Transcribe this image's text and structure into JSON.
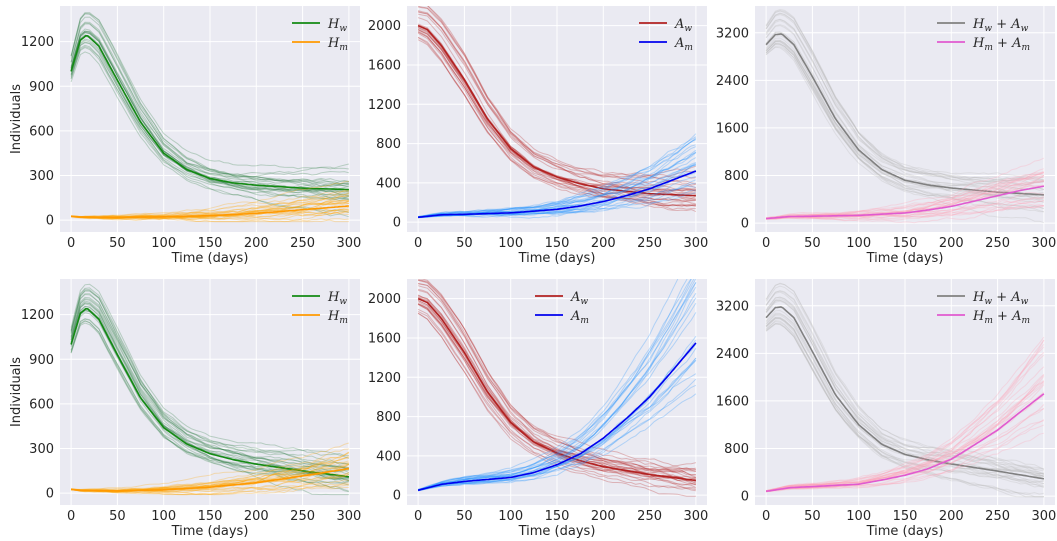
{
  "chart_data": [
    {
      "type": "line",
      "row": 0,
      "col": 0,
      "ylabel": "Individuals",
      "xlabel": "Time (days)",
      "xlim": [
        -12,
        312
      ],
      "ylim": [
        -80,
        1440
      ],
      "xticks": [
        0,
        50,
        100,
        150,
        200,
        250,
        300
      ],
      "yticks": [
        0,
        300,
        600,
        900,
        1200
      ],
      "grid": true,
      "legend": "top-right",
      "series": [
        {
          "name": "Hw",
          "sym": "H",
          "sub": "w",
          "color": "#138a13",
          "band": "#2e7d46",
          "x": [
            0,
            10,
            17,
            30,
            50,
            75,
            100,
            125,
            150,
            175,
            200,
            250,
            300
          ],
          "y": [
            1000,
            1210,
            1245,
            1170,
            940,
            660,
            450,
            340,
            280,
            250,
            235,
            215,
            205
          ]
        },
        {
          "name": "Hm",
          "sym": "H",
          "sub": "m",
          "color": "#ff9900",
          "band": "#ffa600",
          "x": [
            0,
            10,
            50,
            100,
            150,
            200,
            250,
            300
          ],
          "y": [
            25,
            20,
            18,
            22,
            30,
            45,
            70,
            95
          ]
        }
      ]
    },
    {
      "type": "line",
      "row": 0,
      "col": 1,
      "xlabel": "Time (days)",
      "xlim": [
        -12,
        312
      ],
      "ylim": [
        -100,
        2200
      ],
      "xticks": [
        0,
        50,
        100,
        150,
        200,
        250,
        300
      ],
      "yticks": [
        0,
        400,
        800,
        1200,
        1600,
        2000
      ],
      "grid": true,
      "legend": "top-right",
      "series": [
        {
          "name": "Aw",
          "sym": "A",
          "sub": "w",
          "color": "#b22222",
          "band": "#b22222",
          "x": [
            0,
            10,
            25,
            50,
            75,
            100,
            125,
            150,
            175,
            200,
            250,
            300
          ],
          "y": [
            2000,
            1960,
            1800,
            1450,
            1050,
            750,
            560,
            460,
            390,
            340,
            290,
            270
          ]
        },
        {
          "name": "Am",
          "sym": "A",
          "sub": "m",
          "color": "#0000ee",
          "band": "#1e90ff",
          "x": [
            0,
            25,
            50,
            100,
            150,
            175,
            200,
            225,
            250,
            275,
            300
          ],
          "y": [
            50,
            75,
            80,
            95,
            130,
            165,
            210,
            270,
            340,
            430,
            520
          ]
        }
      ]
    },
    {
      "type": "line",
      "row": 0,
      "col": 2,
      "xlabel": "Time (days)",
      "xlim": [
        -12,
        312
      ],
      "ylim": [
        -150,
        3650
      ],
      "xticks": [
        0,
        50,
        100,
        150,
        200,
        250,
        300
      ],
      "yticks": [
        0,
        800,
        1600,
        2400,
        3200
      ],
      "grid": true,
      "legend": "top-right",
      "series": [
        {
          "name": "Hw + Aw",
          "sym": "H",
          "sub": "w",
          "sym2": "A",
          "sub2": "w",
          "color": "#808080",
          "band": "#b8b8b8",
          "x": [
            0,
            10,
            17,
            30,
            50,
            75,
            100,
            125,
            150,
            175,
            200,
            250,
            300
          ],
          "y": [
            3000,
            3170,
            3180,
            3000,
            2460,
            1750,
            1230,
            900,
            720,
            640,
            590,
            520,
            475
          ]
        },
        {
          "name": "Hm + Am",
          "sym": "H",
          "sub": "m",
          "sym2": "A",
          "sub2": "m",
          "color": "#e05ad0",
          "band": "#ff9eb5",
          "x": [
            0,
            25,
            50,
            100,
            150,
            175,
            200,
            225,
            250,
            275,
            300
          ],
          "y": [
            75,
            110,
            115,
            130,
            170,
            220,
            280,
            370,
            460,
            550,
            620
          ]
        }
      ]
    },
    {
      "type": "line",
      "row": 1,
      "col": 0,
      "ylabel": "Individuals",
      "xlabel": "Time (days)",
      "xlim": [
        -12,
        312
      ],
      "ylim": [
        -80,
        1440
      ],
      "xticks": [
        0,
        50,
        100,
        150,
        200,
        250,
        300
      ],
      "yticks": [
        0,
        300,
        600,
        900,
        1200
      ],
      "grid": true,
      "legend": "top-right",
      "series": [
        {
          "name": "Hw",
          "sym": "H",
          "sub": "w",
          "color": "#138a13",
          "band": "#2e7d46",
          "x": [
            0,
            10,
            17,
            30,
            50,
            75,
            100,
            125,
            150,
            175,
            200,
            250,
            300
          ],
          "y": [
            1000,
            1210,
            1245,
            1170,
            930,
            640,
            440,
            330,
            265,
            225,
            195,
            150,
            110
          ]
        },
        {
          "name": "Hm",
          "sym": "H",
          "sub": "m",
          "color": "#ff9900",
          "band": "#ffa600",
          "x": [
            0,
            10,
            50,
            100,
            150,
            200,
            250,
            300
          ],
          "y": [
            25,
            18,
            15,
            22,
            40,
            70,
            115,
            165
          ]
        }
      ]
    },
    {
      "type": "line",
      "row": 1,
      "col": 1,
      "xlabel": "Time (days)",
      "xlim": [
        -12,
        312
      ],
      "ylim": [
        -100,
        2200
      ],
      "xticks": [
        0,
        50,
        100,
        150,
        200,
        250,
        300
      ],
      "yticks": [
        0,
        400,
        800,
        1200,
        1600,
        2000
      ],
      "grid": true,
      "legend": "top-center",
      "series": [
        {
          "name": "Aw",
          "sym": "A",
          "sub": "w",
          "color": "#b22222",
          "band": "#b22222",
          "x": [
            0,
            10,
            25,
            50,
            75,
            100,
            125,
            150,
            175,
            200,
            250,
            300
          ],
          "y": [
            2000,
            1960,
            1800,
            1450,
            1050,
            740,
            540,
            430,
            350,
            290,
            210,
            150
          ]
        },
        {
          "name": "Am",
          "sym": "A",
          "sub": "m",
          "color": "#0000ee",
          "band": "#1e90ff",
          "x": [
            0,
            25,
            50,
            100,
            125,
            150,
            175,
            200,
            225,
            250,
            275,
            300
          ],
          "y": [
            50,
            110,
            140,
            180,
            230,
            310,
            420,
            580,
            780,
            1000,
            1270,
            1550
          ]
        }
      ]
    },
    {
      "type": "line",
      "row": 1,
      "col": 2,
      "xlabel": "Time (days)",
      "xlim": [
        -12,
        312
      ],
      "ylim": [
        -150,
        3650
      ],
      "xticks": [
        0,
        50,
        100,
        150,
        200,
        250,
        300
      ],
      "yticks": [
        0,
        800,
        1600,
        2400,
        3200
      ],
      "grid": true,
      "legend": "top-right",
      "series": [
        {
          "name": "Hw + Aw",
          "sym": "H",
          "sub": "w",
          "sym2": "A",
          "sub2": "w",
          "color": "#808080",
          "band": "#b8b8b8",
          "x": [
            0,
            10,
            17,
            30,
            50,
            75,
            100,
            125,
            150,
            175,
            200,
            250,
            300
          ],
          "y": [
            3000,
            3170,
            3180,
            3000,
            2430,
            1700,
            1200,
            870,
            700,
            610,
            540,
            420,
            290
          ]
        },
        {
          "name": "Hm + Am",
          "sym": "H",
          "sub": "m",
          "sym2": "A",
          "sub2": "m",
          "color": "#e05ad0",
          "band": "#ff9eb5",
          "x": [
            0,
            25,
            50,
            100,
            125,
            150,
            175,
            200,
            225,
            250,
            275,
            300
          ],
          "y": [
            80,
            140,
            160,
            200,
            270,
            350,
            460,
            620,
            860,
            1110,
            1420,
            1720
          ]
        }
      ]
    }
  ]
}
